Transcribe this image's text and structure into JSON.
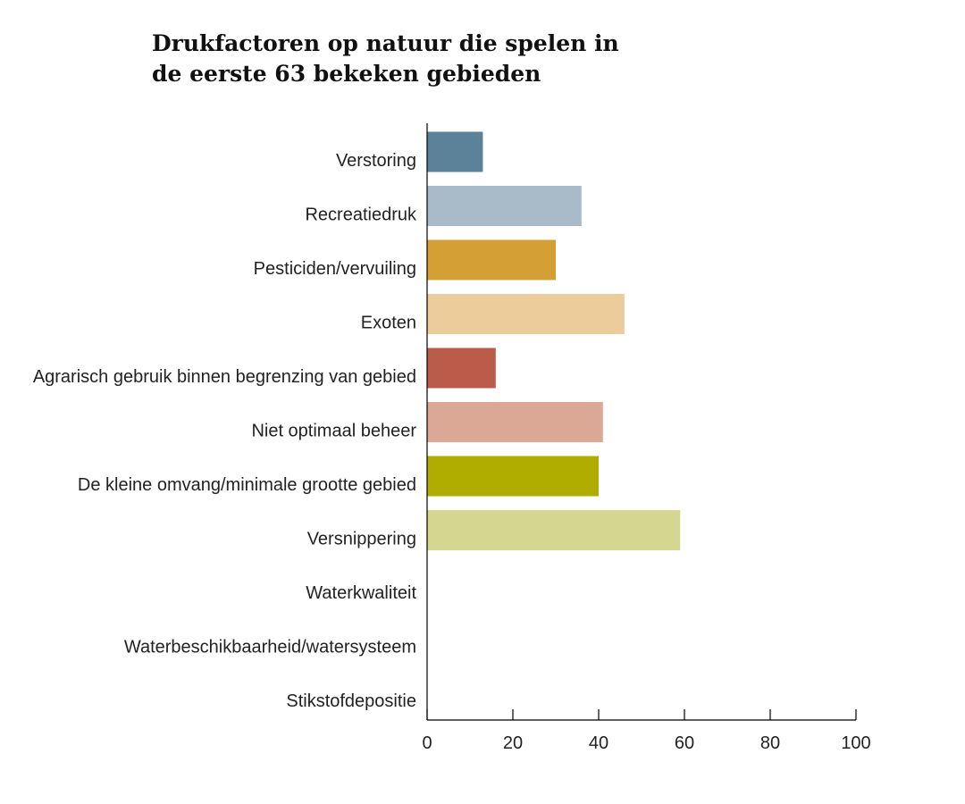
{
  "chart_data": {
    "type": "bar",
    "orientation": "horizontal",
    "title_lines": [
      "Drukfactoren op natuur die spelen in",
      "de eerste 63 bekeken gebieden"
    ],
    "categories": [
      "Verstoring",
      "Recreatiedruk",
      "Pesticiden/vervuiling",
      "Exoten",
      "Agrarisch gebruik binnen begrenzing van gebied",
      "Niet optimaal beheer",
      "De kleine omvang/minimale grootte gebied",
      "Versnippering",
      "Waterkwaliteit",
      "Waterbeschikbaarheid/watersysteem",
      "Stikstofdepositie"
    ],
    "values": [
      13,
      36,
      30,
      46,
      16,
      41,
      40,
      59,
      null,
      null,
      null
    ],
    "colors": [
      "#5b8299",
      "#a9bbc8",
      "#d49f35",
      "#ebcc9a",
      "#bb5b49",
      "#dba896",
      "#b0ad00",
      "#d5d68f",
      null,
      null,
      null
    ],
    "xlim": [
      0,
      100
    ],
    "xticks": [
      0,
      20,
      40,
      60,
      80,
      100
    ],
    "xtick_labels": [
      "0",
      "20",
      "40",
      "60",
      "80",
      "100"
    ],
    "xlabel": "",
    "ylabel": "",
    "grid": false,
    "legend": "none"
  }
}
